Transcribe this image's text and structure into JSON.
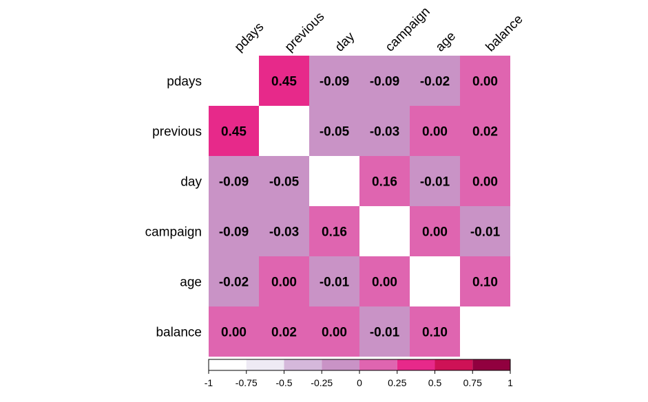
{
  "chart_data": {
    "type": "heatmap",
    "title": "",
    "variables": [
      "pdays",
      "previous",
      "day",
      "campaign",
      "age",
      "balance"
    ],
    "matrix": [
      [
        null,
        0.45,
        -0.09,
        -0.09,
        -0.02,
        0.0
      ],
      [
        0.45,
        null,
        -0.05,
        -0.03,
        0.0,
        0.02
      ],
      [
        -0.09,
        -0.05,
        null,
        0.16,
        -0.01,
        0.0
      ],
      [
        -0.09,
        -0.03,
        0.16,
        null,
        0.0,
        -0.01
      ],
      [
        -0.02,
        0.0,
        -0.01,
        0.0,
        null,
        0.1
      ],
      [
        0.0,
        0.02,
        0.0,
        -0.01,
        0.1,
        null
      ]
    ],
    "labels": [
      [
        null,
        "0.45",
        "-0.09",
        "-0.09",
        "-0.02",
        "0.00"
      ],
      [
        "0.45",
        null,
        "-0.05",
        "-0.03",
        "0.00",
        "0.02"
      ],
      [
        "-0.09",
        "-0.05",
        null,
        "0.16",
        "-0.01",
        "0.00"
      ],
      [
        "-0.09",
        "-0.03",
        "0.16",
        null,
        "0.00",
        "-0.01"
      ],
      [
        "-0.02",
        "0.00",
        "-0.01",
        "0.00",
        null,
        "0.10"
      ],
      [
        "0.00",
        "0.02",
        "0.00",
        "-0.01",
        "0.10",
        null
      ]
    ],
    "diagonal": "blank",
    "color_scale": {
      "range": [
        -1,
        1
      ],
      "breaks": [
        -1,
        -0.75,
        -0.5,
        -0.25,
        0,
        0.25,
        0.5,
        0.75,
        1
      ],
      "tick_labels": [
        "-1",
        "-0.75",
        "-0.5",
        "-0.25",
        "0",
        "0.25",
        "0.5",
        "0.75",
        "1"
      ],
      "colors": [
        "#ffffff",
        "#eeeaf4",
        "#d5b8db",
        "#c993c6",
        "#df65b0",
        "#e7298a",
        "#ce1256",
        "#91003f"
      ],
      "position": "bottom"
    },
    "column_label_rotation_deg": -45
  }
}
